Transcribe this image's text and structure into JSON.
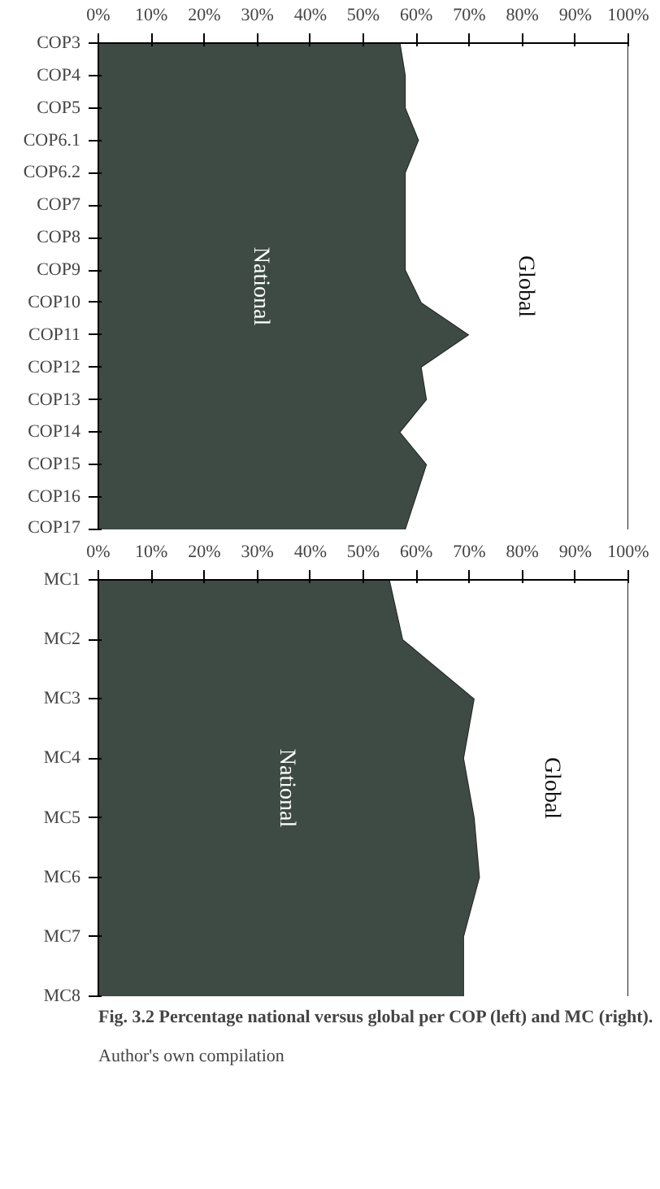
{
  "chart_data": [
    {
      "type": "area",
      "stacked": true,
      "orientation": "horizontal",
      "categories": [
        "COP3",
        "COP4",
        "COP5",
        "COP6.1",
        "COP6.2",
        "COP7",
        "COP8",
        "COP9",
        "COP10",
        "COP11",
        "COP12",
        "COP13",
        "COP14",
        "COP15",
        "COP16",
        "COP17"
      ],
      "series": [
        {
          "name": "National",
          "color": "#3e4b45",
          "values": [
            57,
            58,
            58,
            60.5,
            58,
            58,
            58,
            58,
            61,
            70,
            61,
            62,
            57,
            62,
            60,
            58
          ]
        },
        {
          "name": "Global",
          "color": "#ffffff",
          "values": [
            43,
            42,
            42,
            39.5,
            42,
            42,
            42,
            42,
            39,
            30,
            39,
            38,
            43,
            38,
            40,
            42
          ]
        }
      ],
      "xlim": [
        0,
        100
      ],
      "xticks": [
        {
          "value": 0,
          "label": "0%"
        },
        {
          "value": 10,
          "label": "10%"
        },
        {
          "value": 20,
          "label": "20%"
        },
        {
          "value": 30,
          "label": "30%"
        },
        {
          "value": 40,
          "label": "40%"
        },
        {
          "value": 50,
          "label": "50%"
        },
        {
          "value": 60,
          "label": "60%"
        },
        {
          "value": 70,
          "label": "70%"
        },
        {
          "value": 80,
          "label": "80%"
        },
        {
          "value": 90,
          "label": "90%"
        },
        {
          "value": 100,
          "label": "100%"
        }
      ]
    },
    {
      "type": "area",
      "stacked": true,
      "orientation": "horizontal",
      "categories": [
        "MC1",
        "MC2",
        "MC3",
        "MC4",
        "MC5",
        "MC6",
        "MC7",
        "MC8"
      ],
      "series": [
        {
          "name": "National",
          "color": "#3e4b45",
          "values": [
            55,
            57.5,
            71,
            69,
            71,
            72,
            69,
            69
          ]
        },
        {
          "name": "Global",
          "color": "#ffffff",
          "values": [
            45,
            42.5,
            29,
            31,
            29,
            28,
            31,
            31
          ]
        }
      ],
      "xlim": [
        0,
        100
      ],
      "xticks": [
        {
          "value": 0,
          "label": "0%"
        },
        {
          "value": 10,
          "label": "10%"
        },
        {
          "value": 20,
          "label": "20%"
        },
        {
          "value": 30,
          "label": "30%"
        },
        {
          "value": 40,
          "label": "40%"
        },
        {
          "value": 50,
          "label": "50%"
        },
        {
          "value": 60,
          "label": "60%"
        },
        {
          "value": 70,
          "label": "70%"
        },
        {
          "value": 80,
          "label": "80%"
        },
        {
          "value": 90,
          "label": "90%"
        },
        {
          "value": 100,
          "label": "100%"
        }
      ],
      "annotations": [
        "Fig. 3.2 Percentage national versus global per COP (left) and MC (right).",
        "Author's own compilation"
      ]
    }
  ]
}
